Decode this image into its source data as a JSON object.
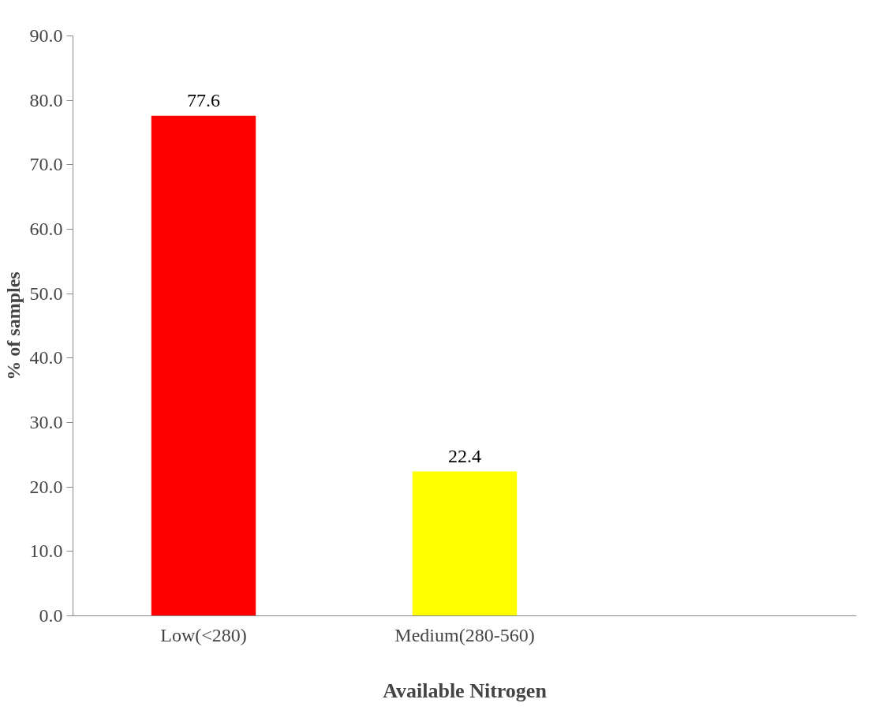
{
  "chart_data": {
    "type": "bar",
    "xlabel": "Available Nitrogen",
    "ylabel": "% of samples",
    "categories": [
      "Low(<280)",
      "Medium(280-560)",
      null
    ],
    "values": [
      77.6,
      22.4,
      null
    ],
    "colors": [
      "#ff0000",
      "#ffff00",
      null
    ],
    "ylim": [
      0,
      90
    ],
    "yticks": [
      {
        "value": 0,
        "label": "0.0"
      },
      {
        "value": 10,
        "label": "10.0"
      },
      {
        "value": 20,
        "label": "20.0"
      },
      {
        "value": 30,
        "label": "30.0"
      },
      {
        "value": 40,
        "label": "40.0"
      },
      {
        "value": 50,
        "label": "50.0"
      },
      {
        "value": 60,
        "label": "60.0"
      },
      {
        "value": 70,
        "label": "70.0"
      },
      {
        "value": 80,
        "label": "80.0"
      },
      {
        "value": 90,
        "label": "90.0"
      }
    ],
    "data_labels": true,
    "grid": false
  }
}
